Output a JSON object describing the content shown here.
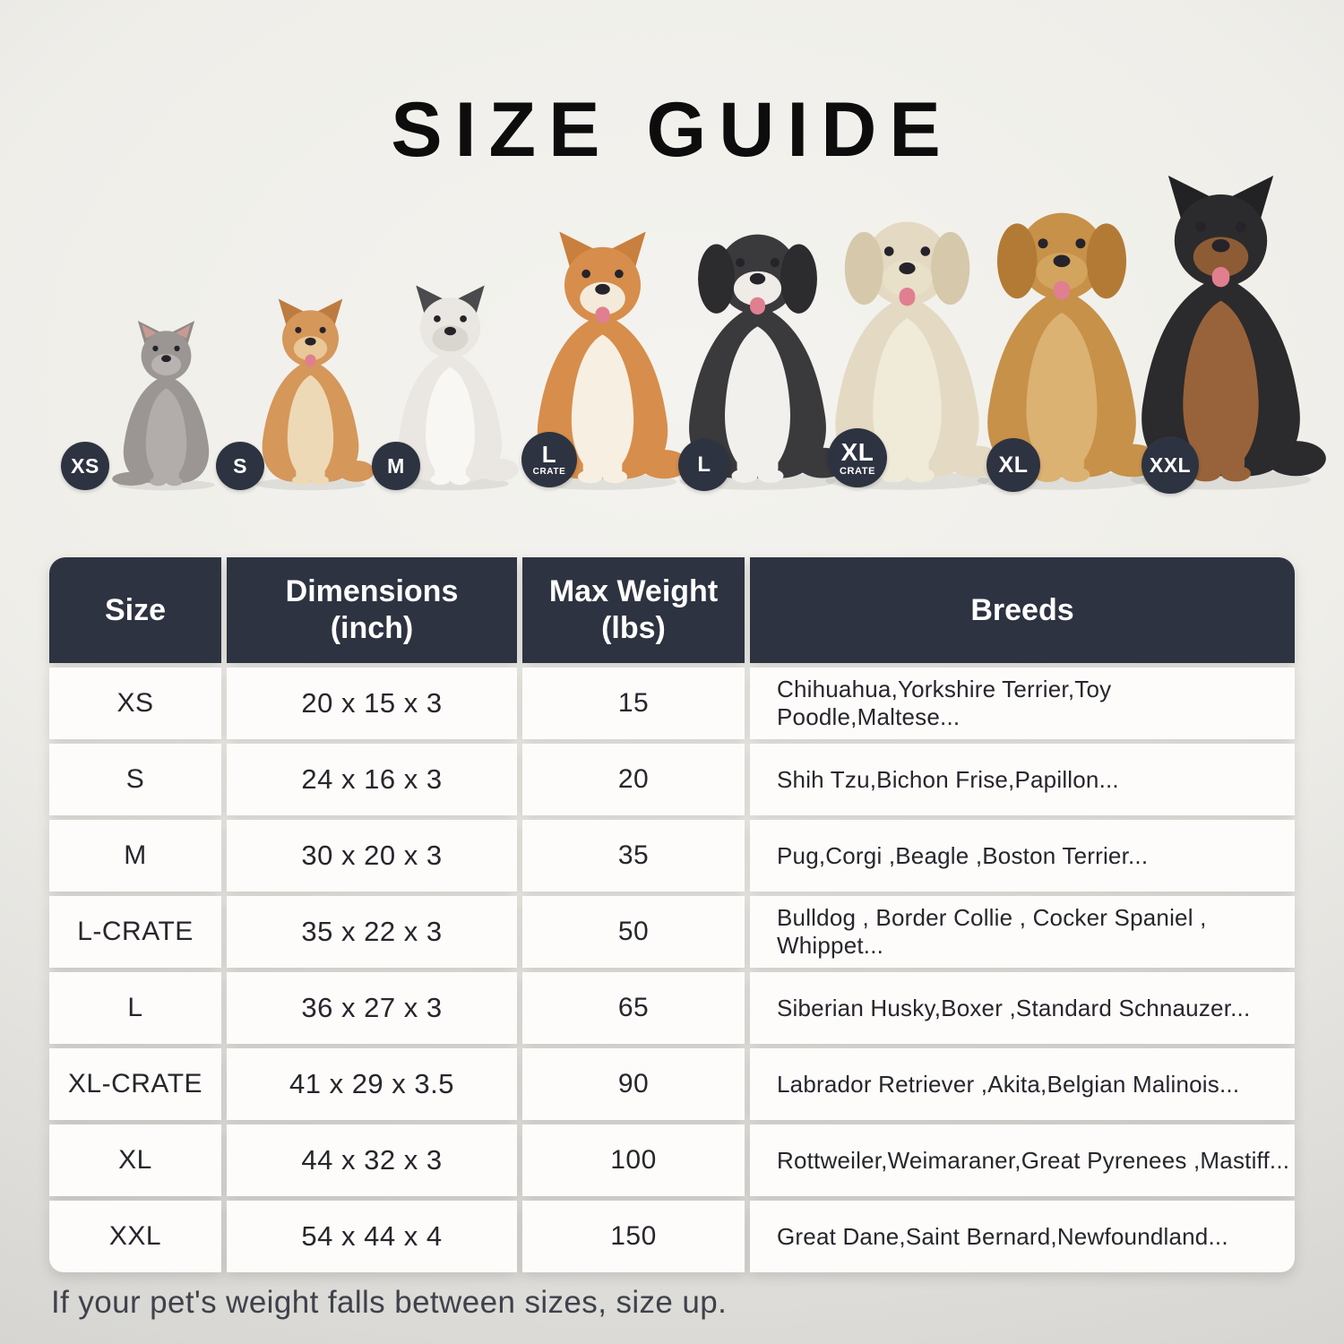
{
  "title": "SIZE GUIDE",
  "footer_note": "If your pet's weight falls between sizes, size up.",
  "colors": {
    "accent": "#2e3342",
    "header_bg": "#2e3342",
    "header_text": "#ffffff",
    "badge_text": "#ffffff",
    "cell_bg": "#fdfcfb",
    "body_text": "#26262c",
    "title_text": "#0d0d0d",
    "note_text": "#3f424a",
    "background_top": "#f4f3ef",
    "background_bottom": "#d3d2cf"
  },
  "pets": [
    {
      "id": "cat",
      "species": "cat",
      "badge": "XS",
      "badge_sub": "",
      "ear": "pointy",
      "body": "#9b9694",
      "chest": "#b2adab",
      "ear_color": "#8f8a88",
      "muzzle": "#b8b3b1",
      "tongue": false
    },
    {
      "id": "pomeranian",
      "species": "dog",
      "badge": "S",
      "badge_sub": "",
      "ear": "pointy",
      "body": "#d6975b",
      "chest": "#eed9b6",
      "ear_color": "#bd7c3f",
      "muzzle": "#e9c796",
      "tongue": true
    },
    {
      "id": "french-bulldog",
      "species": "dog",
      "badge": "M",
      "badge_sub": "",
      "ear": "pointy",
      "body": "#eae7e2",
      "chest": "#f8f7f4",
      "ear_color": "#4b4a4c",
      "muzzle": "#d9d5cf",
      "tongue": false
    },
    {
      "id": "shiba-inu",
      "species": "dog",
      "badge": "L",
      "badge_sub": "CRATE",
      "ear": "pointy",
      "body": "#d78d4c",
      "chest": "#f7efe1",
      "ear_color": "#c97f3d",
      "muzzle": "#f4ead9",
      "tongue": true
    },
    {
      "id": "border-collie",
      "species": "dog",
      "badge": "L",
      "badge_sub": "",
      "ear": "floppy",
      "body": "#3a393b",
      "chest": "#f2f0ec",
      "ear_color": "#2c2b2e",
      "muzzle": "#efece7",
      "tongue": true
    },
    {
      "id": "labrador",
      "species": "dog",
      "badge": "XL",
      "badge_sub": "CRATE",
      "ear": "floppy",
      "body": "#e4dac3",
      "chest": "#f0ead9",
      "ear_color": "#d6c9ab",
      "muzzle": "#e9e0ca",
      "tongue": true
    },
    {
      "id": "golden-retriever",
      "species": "dog",
      "badge": "XL",
      "badge_sub": "",
      "ear": "floppy",
      "body": "#c79149",
      "chest": "#dcb273",
      "ear_color": "#b27a35",
      "muzzle": "#d2a45e",
      "tongue": true
    },
    {
      "id": "doberman",
      "species": "dog",
      "badge": "XXL",
      "badge_sub": "",
      "ear": "pointy",
      "body": "#2b2a2c",
      "chest": "#98633a",
      "ear_color": "#222124",
      "muzzle": "#8d5c34",
      "tongue": true
    }
  ],
  "table": {
    "headers": [
      "Size",
      "Dimensions\n(inch)",
      "Max Weight\n(lbs)",
      "Breeds"
    ]
  },
  "chart_data": {
    "type": "table",
    "title": "SIZE GUIDE",
    "columns": [
      "Size",
      "Dimensions (inch)",
      "Max Weight (lbs)",
      "Breeds"
    ],
    "rows": [
      {
        "size": "XS",
        "dimensions_inch": "20 x 15 x 3",
        "max_weight_lbs": "15",
        "breeds": "Chihuahua,Yorkshire Terrier,Toy Poodle,Maltese..."
      },
      {
        "size": "S",
        "dimensions_inch": "24 x 16 x 3",
        "max_weight_lbs": "20",
        "breeds": "Shih Tzu,Bichon Frise,Papillon..."
      },
      {
        "size": "M",
        "dimensions_inch": "30 x 20 x 3",
        "max_weight_lbs": "35",
        "breeds": "Pug,Corgi ,Beagle ,Boston Terrier..."
      },
      {
        "size": "L-CRATE",
        "dimensions_inch": "35 x 22 x 3",
        "max_weight_lbs": "50",
        "breeds": "Bulldog , Border Collie , Cocker Spaniel , Whippet..."
      },
      {
        "size": "L",
        "dimensions_inch": "36 x 27 x 3",
        "max_weight_lbs": "65",
        "breeds": "Siberian Husky,Boxer ,Standard Schnauzer..."
      },
      {
        "size": "XL-CRATE",
        "dimensions_inch": "41 x 29 x 3.5",
        "max_weight_lbs": "90",
        "breeds": "Labrador Retriever ,Akita,Belgian Malinois..."
      },
      {
        "size": "XL",
        "dimensions_inch": "44 x 32 x 3",
        "max_weight_lbs": "100",
        "breeds": "Rottweiler,Weimaraner,Great Pyrenees ,Mastiff..."
      },
      {
        "size": "XXL",
        "dimensions_inch": "54 x 44 x 4",
        "max_weight_lbs": "150",
        "breeds": "Great Dane,Saint Bernard,Newfoundland..."
      }
    ]
  }
}
